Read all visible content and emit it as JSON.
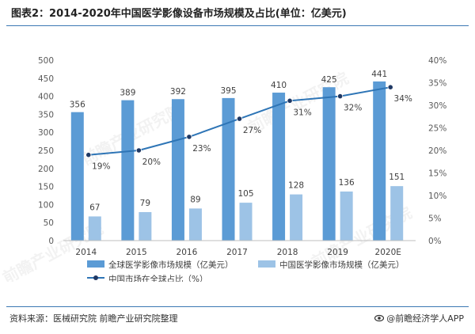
{
  "title": "图表2：2014-2020年中国医学影像设备市场规模及占比(单位：亿美元)",
  "source": "资料来源：医械研究院 前瞻产业研究院整理",
  "brand": {
    "icon": "eye-logo-icon",
    "text": "@前瞻经济学人APP"
  },
  "watermark": "前瞻产业研究院",
  "colors": {
    "global_bar": "#5b9bd5",
    "china_bar": "#9dc3e6",
    "share_line": "#2e75b6",
    "share_marker": "#1f3864",
    "title_rule": "#3c78b4"
  },
  "chart_data": {
    "type": "bar+line",
    "categories": [
      "2014",
      "2015",
      "2016",
      "2017",
      "2018",
      "2019",
      "2020E"
    ],
    "series": [
      {
        "name": "全球医学影像市场规模（亿美元）",
        "type": "bar",
        "axis": "left",
        "values": [
          356,
          389,
          392,
          395,
          410,
          425,
          441
        ],
        "labels": [
          "356",
          "389",
          "392",
          "395",
          "410",
          "425",
          "441"
        ]
      },
      {
        "name": "中国医学影像市场规模（亿美元）",
        "type": "bar",
        "axis": "left",
        "values": [
          67,
          79,
          89,
          105,
          128,
          136,
          151
        ],
        "labels": [
          "67",
          "79",
          "89",
          "105",
          "128",
          "136",
          "151"
        ]
      },
      {
        "name": "中国市场在全球占比（%）",
        "type": "line",
        "axis": "right",
        "values": [
          19,
          20,
          23,
          27,
          31,
          32,
          34
        ],
        "labels": [
          "19%",
          "20%",
          "23%",
          "27%",
          "31%",
          "32%",
          "34%"
        ]
      }
    ],
    "left_axis": {
      "min": 0,
      "max": 500,
      "step": 50,
      "ticks": [
        "0",
        "50",
        "100",
        "150",
        "200",
        "250",
        "300",
        "350",
        "400",
        "450",
        "500"
      ]
    },
    "right_axis": {
      "min": 0,
      "max": 40,
      "step": 5,
      "ticks": [
        "0%",
        "5%",
        "10%",
        "15%",
        "20%",
        "25%",
        "30%",
        "35%",
        "40%"
      ]
    },
    "legend": [
      {
        "label": "全球医学影像市场规模（亿美元）",
        "kind": "bar",
        "series": 0
      },
      {
        "label": "中国医学影像市场规模（亿美元）",
        "kind": "bar",
        "series": 1
      },
      {
        "label": "中国市场在全球占比（%）",
        "kind": "line",
        "series": 2
      }
    ],
    "legend_position": "bottom",
    "grid": false
  }
}
